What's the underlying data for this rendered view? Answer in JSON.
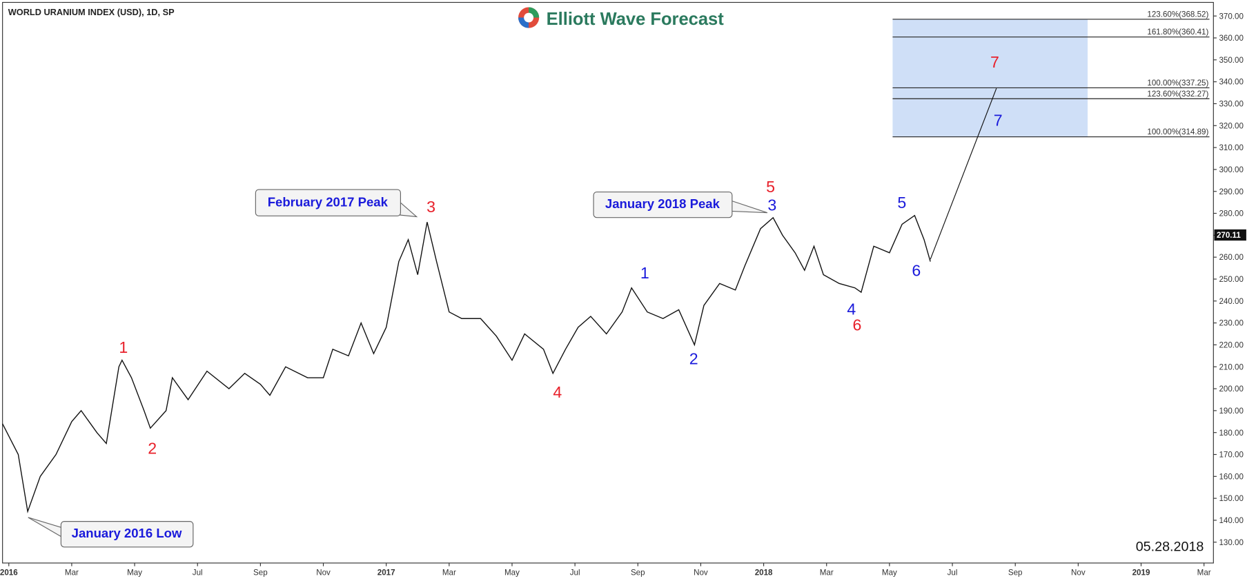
{
  "chart_data": {
    "type": "line",
    "title": "WORLD URANIUM INDEX (USD), 1D, SP",
    "brand": "Elliott Wave Forecast",
    "date_stamp": "05.28.2018",
    "annotations": [
      "January 2016 Low",
      "February 2017 Peak",
      "January 2018 Peak"
    ],
    "xlim": [
      -0.2,
      38.3
    ],
    "xticks": [
      {
        "value": 0,
        "label": "2016"
      },
      {
        "value": 2,
        "label": "Mar"
      },
      {
        "value": 4,
        "label": "May"
      },
      {
        "value": 6,
        "label": "Jul"
      },
      {
        "value": 8,
        "label": "Sep"
      },
      {
        "value": 10,
        "label": "Nov"
      },
      {
        "value": 12,
        "label": "2017"
      },
      {
        "value": 14,
        "label": "Mar"
      },
      {
        "value": 16,
        "label": "May"
      },
      {
        "value": 18,
        "label": "Jul"
      },
      {
        "value": 20,
        "label": "Sep"
      },
      {
        "value": 22,
        "label": "Nov"
      },
      {
        "value": 24,
        "label": "2018"
      },
      {
        "value": 26,
        "label": "Mar"
      },
      {
        "value": 28,
        "label": "May"
      },
      {
        "value": 30,
        "label": "Jul"
      },
      {
        "value": 32,
        "label": "Sep"
      },
      {
        "value": 34,
        "label": "Nov"
      },
      {
        "value": 36,
        "label": "2019"
      },
      {
        "value": 38,
        "label": "Mar"
      }
    ],
    "ylim": [
      120.5,
      376.2
    ],
    "yticks": [
      {
        "value": 130,
        "label": "130.00"
      },
      {
        "value": 140,
        "label": "140.00"
      },
      {
        "value": 150,
        "label": "150.00"
      },
      {
        "value": 160,
        "label": "160.00"
      },
      {
        "value": 170,
        "label": "170.00"
      },
      {
        "value": 180,
        "label": "180.00"
      },
      {
        "value": 190,
        "label": "190.00"
      },
      {
        "value": 200,
        "label": "200.00"
      },
      {
        "value": 210,
        "label": "210.00"
      },
      {
        "value": 220,
        "label": "220.00"
      },
      {
        "value": 230,
        "label": "230.00"
      },
      {
        "value": 240,
        "label": "240.00"
      },
      {
        "value": 250,
        "label": "250.00"
      },
      {
        "value": 260,
        "label": "260.00"
      },
      {
        "value": 270,
        "label": "270.00"
      },
      {
        "value": 280,
        "label": "280.00"
      },
      {
        "value": 290,
        "label": "290.00"
      },
      {
        "value": 300,
        "label": "300.00"
      },
      {
        "value": 310,
        "label": "310.00"
      },
      {
        "value": 320,
        "label": "320.00"
      },
      {
        "value": 330,
        "label": "330.00"
      },
      {
        "value": 340,
        "label": "340.00"
      },
      {
        "value": 350,
        "label": "350.00"
      },
      {
        "value": 360,
        "label": "360.00"
      },
      {
        "value": 370,
        "label": "370.00"
      }
    ],
    "series": [
      {
        "name": "WORLD URANIUM INDEX",
        "color": "#111111",
        "x": [
          -0.2,
          0.3,
          0.6,
          1,
          1.5,
          2,
          2.3,
          2.8,
          3.1,
          3.5,
          3.6,
          3.9,
          4.3,
          4.5,
          5,
          5.2,
          5.7,
          6.3,
          7,
          7.5,
          8,
          8.3,
          8.8,
          9.5,
          10,
          10.3,
          10.8,
          11.2,
          11.6,
          12,
          12.4,
          12.7,
          13,
          13.3,
          13.6,
          14,
          14.4,
          15,
          15.5,
          16,
          16.4,
          17,
          17.3,
          17.7,
          18.1,
          18.5,
          19,
          19.5,
          19.8,
          20.3,
          20.8,
          21.3,
          21.8,
          22.1,
          22.6,
          23.1,
          23.4,
          23.9,
          24.3,
          24.6,
          25,
          25.3,
          25.6,
          25.9,
          26.4,
          26.9,
          27.1,
          27.5,
          28,
          28.4,
          28.8,
          29.1,
          29.3
        ],
        "values": [
          184,
          170,
          144,
          160,
          170,
          185,
          190,
          180,
          175,
          210,
          213,
          205,
          190,
          182,
          190,
          205,
          195,
          208,
          200,
          207,
          202,
          197,
          210,
          205,
          205,
          218,
          215,
          230,
          216,
          228,
          258,
          268,
          252,
          276,
          258,
          235,
          232,
          232,
          224,
          213,
          225,
          218,
          207,
          218,
          228,
          233,
          225,
          235,
          246,
          235,
          232,
          236,
          220,
          238,
          248,
          245,
          256,
          273,
          278,
          270,
          262,
          254,
          265,
          252,
          248,
          246,
          244,
          265,
          262,
          275,
          279,
          268,
          258
        ]
      }
    ],
    "last_price": 270.11,
    "projection": {
      "x": [
        29.3,
        31.4
      ],
      "values": [
        259,
        337
      ]
    },
    "target_zone_x": [
      28.1,
      34.3
    ],
    "fib_levels": [
      {
        "value": 368.52,
        "label": "123.60%(368.52)"
      },
      {
        "value": 360.41,
        "label": "161.80%(360.41)"
      },
      {
        "value": 337.25,
        "label": "100.00%(337.25)"
      },
      {
        "value": 332.27,
        "label": "123.60%(332.27)"
      },
      {
        "value": 314.89,
        "label": "100.00%(314.89)"
      }
    ],
    "wave_labels": [
      {
        "text": "1",
        "color": "#e8202a"
      },
      {
        "text": "2",
        "color": "#e8202a"
      },
      {
        "text": "3",
        "color": "#e8202a"
      },
      {
        "text": "4",
        "color": "#e8202a"
      },
      {
        "text": "5",
        "color": "#e8202a"
      },
      {
        "text": "6",
        "color": "#e8202a"
      },
      {
        "text": "7",
        "color": "#e8202a"
      },
      {
        "text": "1",
        "color": "#1a1adb"
      },
      {
        "text": "2",
        "color": "#1a1adb"
      },
      {
        "text": "3",
        "color": "#1a1adb"
      },
      {
        "text": "4",
        "color": "#1a1adb"
      },
      {
        "text": "5",
        "color": "#1a1adb"
      },
      {
        "text": "6",
        "color": "#1a1adb"
      },
      {
        "text": "7",
        "color": "#1a1adb"
      }
    ]
  }
}
